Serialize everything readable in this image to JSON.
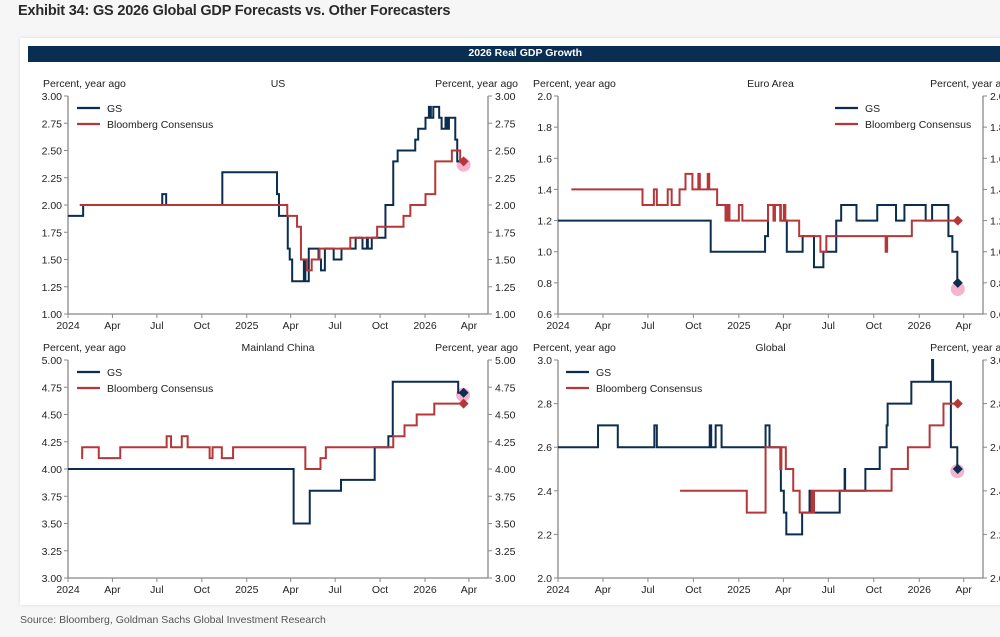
{
  "title": "Exhibit 34: GS 2026 Global GDP Forecasts vs. Other Forecasters",
  "band_title": "2026 Real GDP Growth",
  "source": "Source: Bloomberg, Goldman Sachs Global Investment Research",
  "colors": {
    "gs": "#0b2d4f",
    "consensus": "#b5373a",
    "highlight": "#f4a6c6",
    "band": "#0a2d52"
  },
  "chart_data": [
    {
      "type": "line",
      "step": true,
      "title": "US",
      "ylabel_left": "Percent, year ago",
      "ylabel_right": "Percent, year ago",
      "xlim": [
        "2024-01-01",
        "2026-05-10"
      ],
      "ylim": [
        1.0,
        3.0
      ],
      "yticks": [
        "1.00",
        "1.25",
        "1.50",
        "1.75",
        "2.00",
        "2.25",
        "2.50",
        "2.75",
        "3.00"
      ],
      "xticks": [
        "2024",
        "Apr",
        "Jul",
        "Oct",
        "2025",
        "Apr",
        "Jul",
        "Oct",
        "2026",
        "Apr"
      ],
      "legend": "top-left",
      "series": [
        {
          "name": "GS",
          "points": [
            [
              "2024-01-01",
              1.9
            ],
            [
              "2024-02-01",
              2.0
            ],
            [
              "2024-07-12",
              2.1
            ],
            [
              "2024-07-20",
              2.0
            ],
            [
              "2024-11-12",
              2.3
            ],
            [
              "2025-03-04",
              2.1
            ],
            [
              "2025-03-08",
              1.9
            ],
            [
              "2025-03-26",
              1.6
            ],
            [
              "2025-03-30",
              1.5
            ],
            [
              "2025-04-04",
              1.3
            ],
            [
              "2025-04-28",
              1.5
            ],
            [
              "2025-05-01",
              1.3
            ],
            [
              "2025-05-08",
              1.6
            ],
            [
              "2025-05-28",
              1.5
            ],
            [
              "2025-06-02",
              1.4
            ],
            [
              "2025-06-10",
              1.6
            ],
            [
              "2025-06-28",
              1.5
            ],
            [
              "2025-07-14",
              1.6
            ],
            [
              "2025-08-12",
              1.7
            ],
            [
              "2025-08-26",
              1.6
            ],
            [
              "2025-09-04",
              1.7
            ],
            [
              "2025-09-06",
              1.6
            ],
            [
              "2025-09-14",
              1.7
            ],
            [
              "2025-10-12",
              2.0
            ],
            [
              "2025-10-28",
              2.4
            ],
            [
              "2025-11-06",
              2.5
            ],
            [
              "2025-12-12",
              2.6
            ],
            [
              "2025-12-18",
              2.7
            ],
            [
              "2026-01-02",
              2.8
            ],
            [
              "2026-01-09",
              2.9
            ],
            [
              "2026-01-13",
              2.8
            ],
            [
              "2026-01-18",
              2.9
            ],
            [
              "2026-01-30",
              2.8
            ],
            [
              "2026-02-04",
              2.7
            ],
            [
              "2026-02-12",
              2.8
            ],
            [
              "2026-02-15",
              2.7
            ],
            [
              "2026-02-19",
              2.8
            ],
            [
              "2026-03-04",
              2.6
            ],
            [
              "2026-03-08",
              2.4
            ],
            [
              "2026-03-16",
              2.4
            ]
          ],
          "end_marker": false
        },
        {
          "name": "Bloomberg Consensus",
          "points": [
            [
              "2024-01-25",
              2.0
            ],
            [
              "2025-03-25",
              1.9
            ],
            [
              "2025-04-14",
              1.8
            ],
            [
              "2025-04-22",
              1.5
            ],
            [
              "2025-05-04",
              1.4
            ],
            [
              "2025-05-14",
              1.5
            ],
            [
              "2025-05-30",
              1.6
            ],
            [
              "2025-08-01",
              1.7
            ],
            [
              "2025-09-25",
              1.8
            ],
            [
              "2025-11-18",
              1.9
            ],
            [
              "2025-12-02",
              2.0
            ],
            [
              "2026-01-02",
              2.1
            ],
            [
              "2026-01-22",
              2.4
            ],
            [
              "2026-02-25",
              2.5
            ],
            [
              "2026-03-14",
              2.4
            ],
            [
              "2026-03-21",
              2.4
            ]
          ],
          "end_marker": true
        }
      ],
      "highlight": {
        "date": "2026-03-21",
        "value": 2.37
      }
    },
    {
      "type": "line",
      "step": true,
      "title": "Euro Area",
      "ylabel_left": "Percent, year ago",
      "ylabel_right": "Percent, year ago",
      "xlim": [
        "2024-01-01",
        "2026-05-10"
      ],
      "ylim": [
        0.6,
        2.0
      ],
      "yticks": [
        "0.6",
        "0.8",
        "1.0",
        "1.2",
        "1.4",
        "1.6",
        "1.8",
        "2.0"
      ],
      "xticks": [
        "2024",
        "Apr",
        "Jul",
        "Oct",
        "2025",
        "Apr",
        "Jul",
        "Oct",
        "2026",
        "Apr"
      ],
      "legend": "top-right",
      "series": [
        {
          "name": "GS",
          "points": [
            [
              "2024-01-01",
              1.2
            ],
            [
              "2024-11-05",
              1.0
            ],
            [
              "2025-02-23",
              1.1
            ],
            [
              "2025-03-01",
              1.3
            ],
            [
              "2025-03-26",
              1.2
            ],
            [
              "2025-04-08",
              1.0
            ],
            [
              "2025-05-10",
              1.1
            ],
            [
              "2025-06-02",
              0.9
            ],
            [
              "2025-06-21",
              1.0
            ],
            [
              "2025-07-17",
              1.2
            ],
            [
              "2025-07-27",
              1.3
            ],
            [
              "2025-08-27",
              1.2
            ],
            [
              "2025-10-08",
              1.3
            ],
            [
              "2025-11-15",
              1.2
            ],
            [
              "2025-12-02",
              1.3
            ],
            [
              "2026-01-14",
              1.2
            ],
            [
              "2026-01-27",
              1.3
            ],
            [
              "2026-03-01",
              1.1
            ],
            [
              "2026-03-09",
              1.0
            ],
            [
              "2026-03-19",
              0.8
            ],
            [
              "2026-03-20",
              0.8
            ]
          ],
          "end_marker": true
        },
        {
          "name": "Bloomberg Consensus",
          "points": [
            [
              "2024-01-28",
              1.4
            ],
            [
              "2024-06-20",
              1.3
            ],
            [
              "2024-07-13",
              1.4
            ],
            [
              "2024-07-19",
              1.3
            ],
            [
              "2024-08-10",
              1.4
            ],
            [
              "2024-08-18",
              1.3
            ],
            [
              "2024-09-03",
              1.4
            ],
            [
              "2024-09-15",
              1.5
            ],
            [
              "2024-09-29",
              1.4
            ],
            [
              "2024-10-11",
              1.5
            ],
            [
              "2024-10-14",
              1.4
            ],
            [
              "2024-10-30",
              1.5
            ],
            [
              "2024-11-02",
              1.4
            ],
            [
              "2024-11-18",
              1.3
            ],
            [
              "2024-12-05",
              1.2
            ],
            [
              "2024-12-09",
              1.3
            ],
            [
              "2024-12-13",
              1.2
            ],
            [
              "2025-01-01",
              1.3
            ],
            [
              "2025-01-08",
              1.2
            ],
            [
              "2025-03-01",
              1.3
            ],
            [
              "2025-03-12",
              1.2
            ],
            [
              "2025-03-15",
              1.3
            ],
            [
              "2025-03-27",
              1.2
            ],
            [
              "2025-04-02",
              1.3
            ],
            [
              "2025-04-05",
              1.2
            ],
            [
              "2025-05-03",
              1.1
            ],
            [
              "2025-06-15",
              1.0
            ],
            [
              "2025-06-27",
              1.1
            ],
            [
              "2025-10-25",
              1.0
            ],
            [
              "2025-10-28",
              1.1
            ],
            [
              "2025-12-17",
              1.2
            ],
            [
              "2026-03-20",
              1.2
            ]
          ],
          "end_marker": true
        }
      ],
      "highlight": {
        "date": "2026-03-20",
        "value": 0.76
      }
    },
    {
      "type": "line",
      "step": true,
      "title": "Mainland China",
      "ylabel_left": "Percent, year ago",
      "ylabel_right": "Percent, year ago",
      "xlim": [
        "2024-01-01",
        "2026-05-10"
      ],
      "ylim": [
        3.0,
        5.0
      ],
      "yticks": [
        "3.00",
        "3.25",
        "3.50",
        "3.75",
        "4.00",
        "4.25",
        "4.50",
        "4.75",
        "5.00"
      ],
      "xticks": [
        "2024",
        "Apr",
        "Jul",
        "Oct",
        "2025",
        "Apr",
        "Jul",
        "Oct",
        "2026",
        "Apr"
      ],
      "legend": "top-left",
      "series": [
        {
          "name": "GS",
          "points": [
            [
              "2024-01-01",
              4.0
            ],
            [
              "2025-04-07",
              3.5
            ],
            [
              "2025-05-10",
              3.8
            ],
            [
              "2025-07-13",
              3.9
            ],
            [
              "2025-09-20",
              4.2
            ],
            [
              "2025-10-18",
              4.3
            ],
            [
              "2025-10-27",
              4.8
            ],
            [
              "2026-03-10",
              4.7
            ],
            [
              "2026-03-21",
              4.7
            ]
          ],
          "end_marker": true
        },
        {
          "name": "Bloomberg Consensus",
          "points": [
            [
              "2024-01-28",
              4.1
            ],
            [
              "2024-01-30",
              4.2
            ],
            [
              "2024-03-04",
              4.1
            ],
            [
              "2024-04-17",
              4.2
            ],
            [
              "2024-07-21",
              4.3
            ],
            [
              "2024-07-30",
              4.2
            ],
            [
              "2024-08-21",
              4.3
            ],
            [
              "2024-09-02",
              4.2
            ],
            [
              "2024-10-17",
              4.1
            ],
            [
              "2024-10-23",
              4.2
            ],
            [
              "2024-11-11",
              4.1
            ],
            [
              "2024-12-04",
              4.2
            ],
            [
              "2025-05-01",
              4.0
            ],
            [
              "2025-06-01",
              4.1
            ],
            [
              "2025-06-12",
              4.2
            ],
            [
              "2025-10-28",
              4.3
            ],
            [
              "2025-11-20",
              4.4
            ],
            [
              "2025-12-15",
              4.5
            ],
            [
              "2026-01-20",
              4.6
            ],
            [
              "2026-03-21",
              4.6
            ]
          ],
          "end_marker": true
        }
      ],
      "highlight": {
        "date": "2026-03-20",
        "value": 4.68
      }
    },
    {
      "type": "line",
      "step": true,
      "title": "Global",
      "ylabel_left": "Percent, year ago",
      "ylabel_right": "Percent, year ago",
      "xlim": [
        "2024-01-01",
        "2026-05-10"
      ],
      "ylim": [
        2.0,
        3.0
      ],
      "yticks": [
        "2.0",
        "2.2",
        "2.4",
        "2.6",
        "2.8",
        "3.0"
      ],
      "xticks": [
        "2024",
        "Apr",
        "Jul",
        "Oct",
        "2025",
        "Apr",
        "Jul",
        "Oct",
        "2026",
        "Apr"
      ],
      "legend": "top-left",
      "series": [
        {
          "name": "GS",
          "points": [
            [
              "2024-01-01",
              2.6
            ],
            [
              "2024-03-22",
              2.7
            ],
            [
              "2024-05-01",
              2.6
            ],
            [
              "2024-07-14",
              2.7
            ],
            [
              "2024-07-19",
              2.6
            ],
            [
              "2024-11-03",
              2.7
            ],
            [
              "2024-11-06",
              2.6
            ],
            [
              "2024-11-15",
              2.7
            ],
            [
              "2024-11-27",
              2.6
            ],
            [
              "2025-02-24",
              2.7
            ],
            [
              "2025-03-04",
              2.6
            ],
            [
              "2025-03-26",
              2.5
            ],
            [
              "2025-03-27",
              2.4
            ],
            [
              "2025-04-02",
              2.3
            ],
            [
              "2025-04-07",
              2.2
            ],
            [
              "2025-05-09",
              2.3
            ],
            [
              "2025-05-24",
              2.4
            ],
            [
              "2025-05-26",
              2.3
            ],
            [
              "2025-07-24",
              2.4
            ],
            [
              "2025-08-03",
              2.5
            ],
            [
              "2025-08-04",
              2.4
            ],
            [
              "2025-09-14",
              2.5
            ],
            [
              "2025-10-13",
              2.6
            ],
            [
              "2025-10-27",
              2.7
            ],
            [
              "2025-10-29",
              2.8
            ],
            [
              "2025-12-16",
              2.9
            ],
            [
              "2026-01-27",
              3.0
            ],
            [
              "2026-01-29",
              2.9
            ],
            [
              "2026-03-06",
              2.6
            ],
            [
              "2026-03-19",
              2.5
            ],
            [
              "2026-03-20",
              2.5
            ]
          ],
          "end_marker": true
        },
        {
          "name": "Bloomberg Consensus",
          "points": [
            [
              "2024-09-04",
              2.4
            ],
            [
              "2025-01-17",
              2.3
            ],
            [
              "2025-02-24",
              2.6
            ],
            [
              "2025-03-26",
              2.5
            ],
            [
              "2025-03-28",
              2.6
            ],
            [
              "2025-04-06",
              2.5
            ],
            [
              "2025-04-21",
              2.4
            ],
            [
              "2025-05-04",
              2.3
            ],
            [
              "2025-05-28",
              2.4
            ],
            [
              "2025-05-30",
              2.3
            ],
            [
              "2025-06-02",
              2.4
            ],
            [
              "2025-11-06",
              2.5
            ],
            [
              "2025-12-09",
              2.6
            ],
            [
              "2026-01-22",
              2.7
            ],
            [
              "2026-02-19",
              2.8
            ],
            [
              "2026-03-20",
              2.8
            ]
          ],
          "end_marker": true
        }
      ],
      "highlight": {
        "date": "2026-03-19",
        "value": 2.49
      }
    }
  ]
}
